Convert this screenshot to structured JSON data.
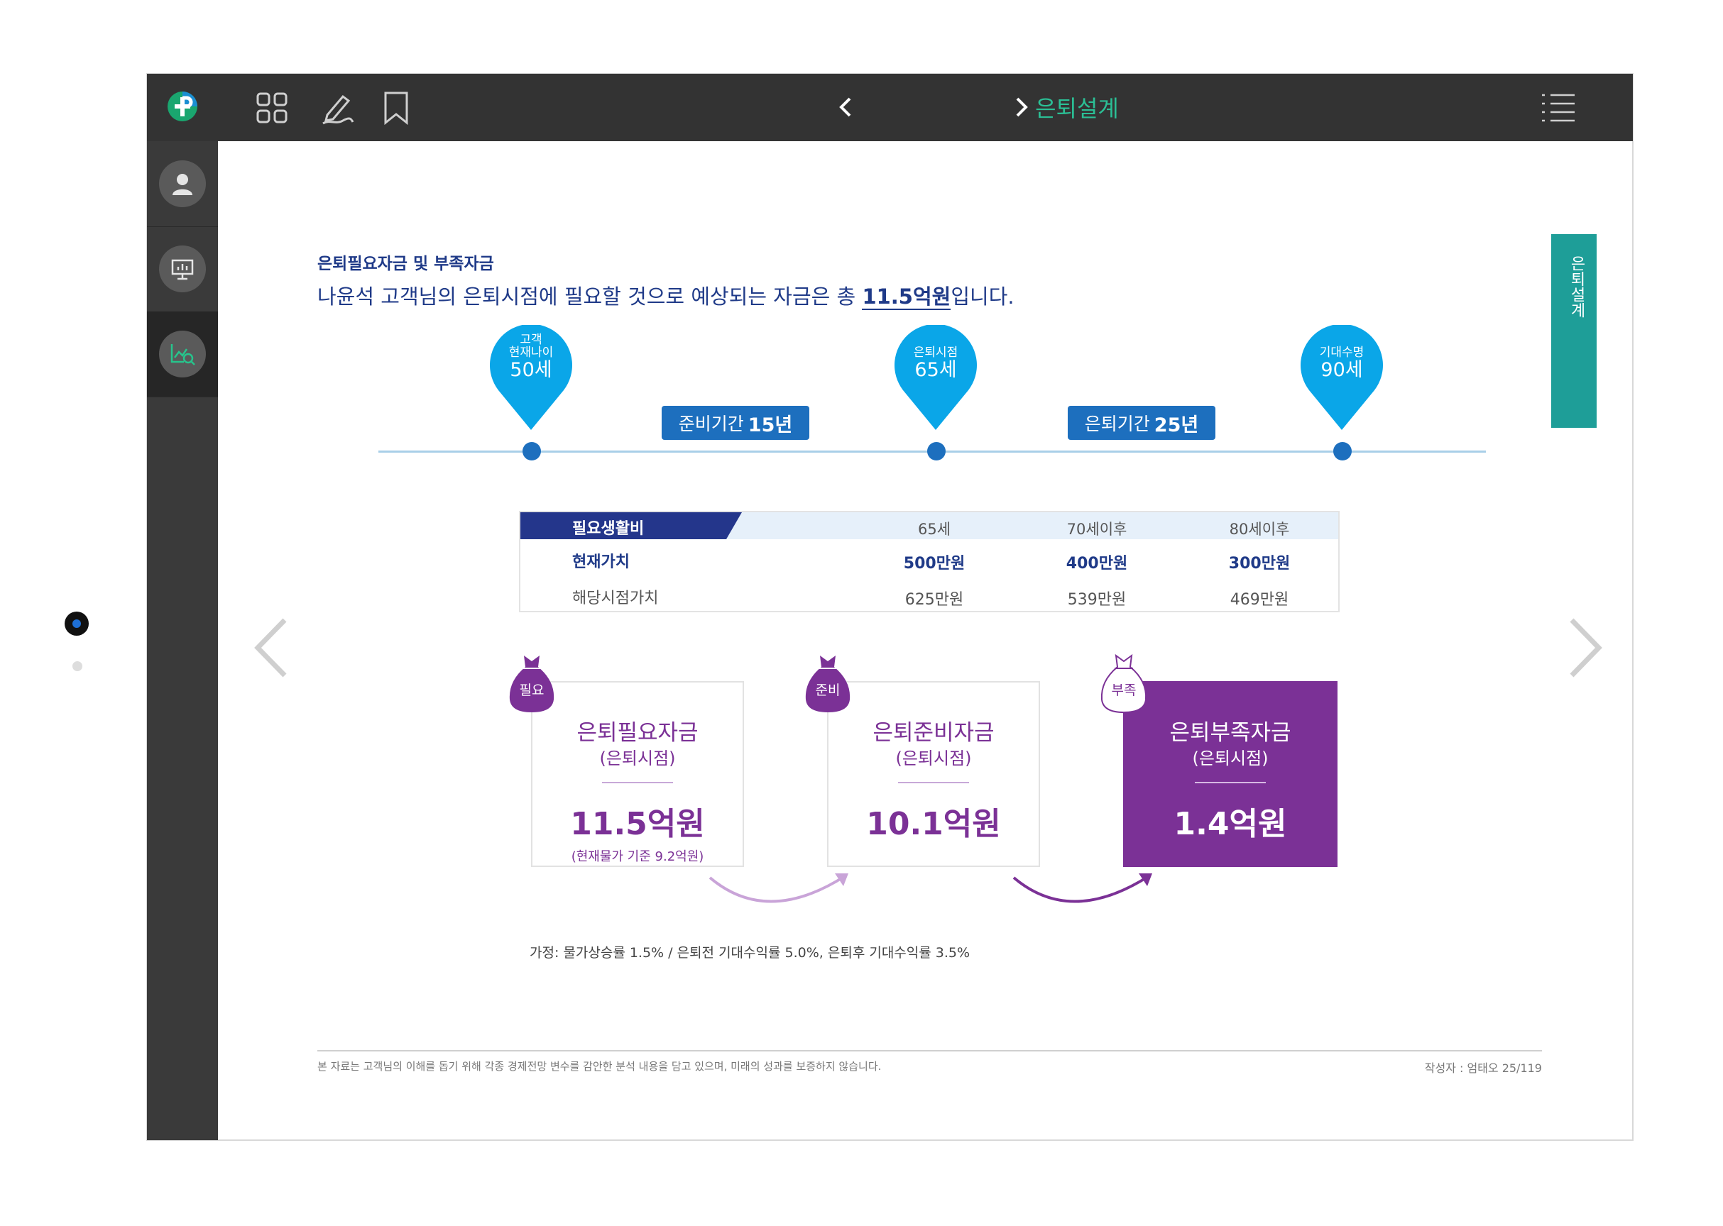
{
  "topbar": {
    "logo_icon": "pinnacle-logo-icon",
    "title": "은퇴설계",
    "icons": [
      "grid-icon",
      "pen-icon",
      "bookmark-icon",
      "menu-list-icon"
    ]
  },
  "sidebar": {
    "items": [
      {
        "icon": "user-icon"
      },
      {
        "icon": "presentation-icon"
      },
      {
        "icon": "chart-search-icon",
        "active": true
      }
    ]
  },
  "page": {
    "subtitle": "은퇴필요자금 및 부족자금",
    "headline_pre": "나윤석 고객님의 은퇴시점에 필요할 것으로 예상되는 자금은 총 ",
    "headline_amount": "11.5억원",
    "headline_post": "입니다.",
    "side_tab": "은퇴설계"
  },
  "timeline": {
    "pins": [
      {
        "small1": "고객",
        "small2": "현재나이",
        "big": "50세"
      },
      {
        "small1": "",
        "small2": "은퇴시점",
        "big": "65세"
      },
      {
        "small1": "",
        "small2": "기대수명",
        "big": "90세"
      }
    ],
    "periods": [
      {
        "label": "준비기간",
        "value": "15년"
      },
      {
        "label": "은퇴기간",
        "value": "25년"
      }
    ]
  },
  "table": {
    "header": [
      "필요생활비",
      "65세",
      "70세이후",
      "80세이후"
    ],
    "rows": [
      {
        "label": "현재가치",
        "values": [
          "500만원",
          "400만원",
          "300만원"
        ]
      },
      {
        "label": "해당시점가치",
        "values": [
          "625만원",
          "539만원",
          "469만원"
        ]
      }
    ]
  },
  "cards": [
    {
      "bag": "필요",
      "title": "은퇴필요자금",
      "sub": "(은퇴시점)",
      "value": "11.5억원",
      "note": "(현재물가 기준 9.2억원)"
    },
    {
      "bag": "준비",
      "title": "은퇴준비자금",
      "sub": "(은퇴시점)",
      "value": "10.1억원",
      "note": ""
    },
    {
      "bag": "부족",
      "title": "은퇴부족자금",
      "sub": "(은퇴시점)",
      "value": "1.4억원",
      "note": ""
    }
  ],
  "assumption": "가정: 물가상승률 1.5% / 은퇴전 기대수익률 5.0%, 은퇴후 기대수익률 3.5%",
  "footer": {
    "disclaimer": "본 자료는 고객님의 이해를 돕기 위해 각종 경제전망 변수를 감안한 분석 내용을 담고 있으며, 미래의 성과를 보증하지 않습니다.",
    "author": "작성자 : 엄태오 25/119"
  },
  "colors": {
    "accent_green": "#2bbf95",
    "navy": "#1f3a88",
    "pin_blue": "#0aa6e8",
    "period_blue": "#1d6fbe",
    "purple": "#7b3196",
    "teal_tab": "#1e9e98"
  }
}
